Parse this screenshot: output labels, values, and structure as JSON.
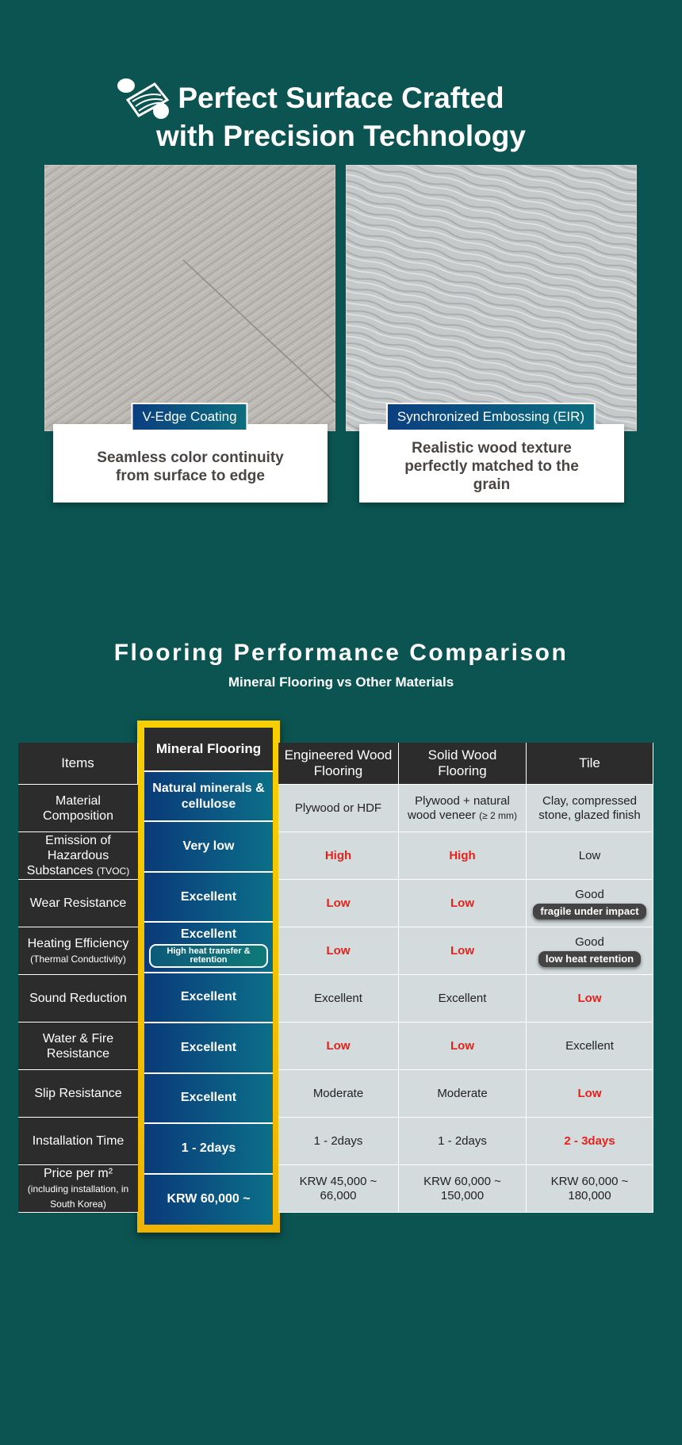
{
  "header": {
    "title_lines": [
      "Perfect Surface Crafted",
      "with Precision Technology"
    ]
  },
  "features": [
    {
      "label": "V-Edge Coating",
      "caption": "Seamless color continuity from surface to edge"
    },
    {
      "label": "Synchronized Embossing (EIR)",
      "caption": "Realistic wood texture perfectly matched to the grain"
    }
  ],
  "comparison": {
    "title": "Flooring Performance Comparison",
    "subtitle": "Mineral Flooring vs Other Materials",
    "table": {
      "header": [
        "Items",
        "Mineral Flooring",
        "Engineered Wood Flooring",
        "Solid Wood Flooring",
        "Tile"
      ],
      "rows": [
        [
          {
            "text": "Material Composition"
          },
          {
            "text": "Natural minerals & cellulose"
          },
          {
            "text": "Plywood or HDF"
          },
          {
            "text": "Plywood + natural wood veneer",
            "note": "(≥ 2 mm)"
          },
          {
            "text": "Clay, compressed stone, glazed finish"
          }
        ],
        [
          {
            "text": "Emission of Hazardous Substances",
            "note": "(TVOC)"
          },
          {
            "text": "Very low"
          },
          {
            "text": "High",
            "color": "#e3221c"
          },
          {
            "text": "High",
            "color": "#e3221c"
          },
          {
            "text": "Low"
          }
        ],
        [
          {
            "text": "Wear Resistance"
          },
          {
            "text": "Excellent"
          },
          {
            "text": "Low",
            "color": "#e3221c"
          },
          {
            "text": "Low",
            "color": "#e3221c"
          },
          {
            "text": "Good",
            "badge": "fragile under impact"
          }
        ],
        [
          {
            "text": "Heating Efficiency",
            "note": "(Thermal Conductivity)"
          },
          {
            "text": "Excellent",
            "badge": "High heat transfer & retention"
          },
          {
            "text": "Low",
            "color": "#e3221c"
          },
          {
            "text": "Low",
            "color": "#e3221c"
          },
          {
            "text": "Good",
            "badge": "low heat retention"
          }
        ],
        [
          {
            "text": "Sound Reduction"
          },
          {
            "text": "Excellent"
          },
          {
            "text": "Excellent"
          },
          {
            "text": "Excellent"
          },
          {
            "text": "Low",
            "color": "#e3221c"
          }
        ],
        [
          {
            "text": "Water & Fire Resistance"
          },
          {
            "text": "Excellent"
          },
          {
            "text": "Low",
            "color": "#e3221c"
          },
          {
            "text": "Low",
            "color": "#e3221c"
          },
          {
            "text": "Excellent"
          }
        ],
        [
          {
            "text": "Slip Resistance"
          },
          {
            "text": "Excellent"
          },
          {
            "text": "Moderate"
          },
          {
            "text": "Moderate"
          },
          {
            "text": "Low",
            "color": "#e3221c"
          }
        ],
        [
          {
            "text": "Installation Time"
          },
          {
            "text": "1 - 2days"
          },
          {
            "text": "1 - 2days"
          },
          {
            "text": "1 - 2days"
          },
          {
            "text": "2 - 3days",
            "color": "#e3221c"
          }
        ],
        [
          {
            "text": "Price per m²",
            "note": "(including installation, in South Korea)"
          },
          {
            "text": "KRW 60,000 ~"
          },
          {
            "text": "KRW 45,000 ~ 66,000"
          },
          {
            "text": "KRW 60,000 ~ 150,000"
          },
          {
            "text": "KRW 60,000 ~ 180,000"
          }
        ]
      ]
    }
  }
}
